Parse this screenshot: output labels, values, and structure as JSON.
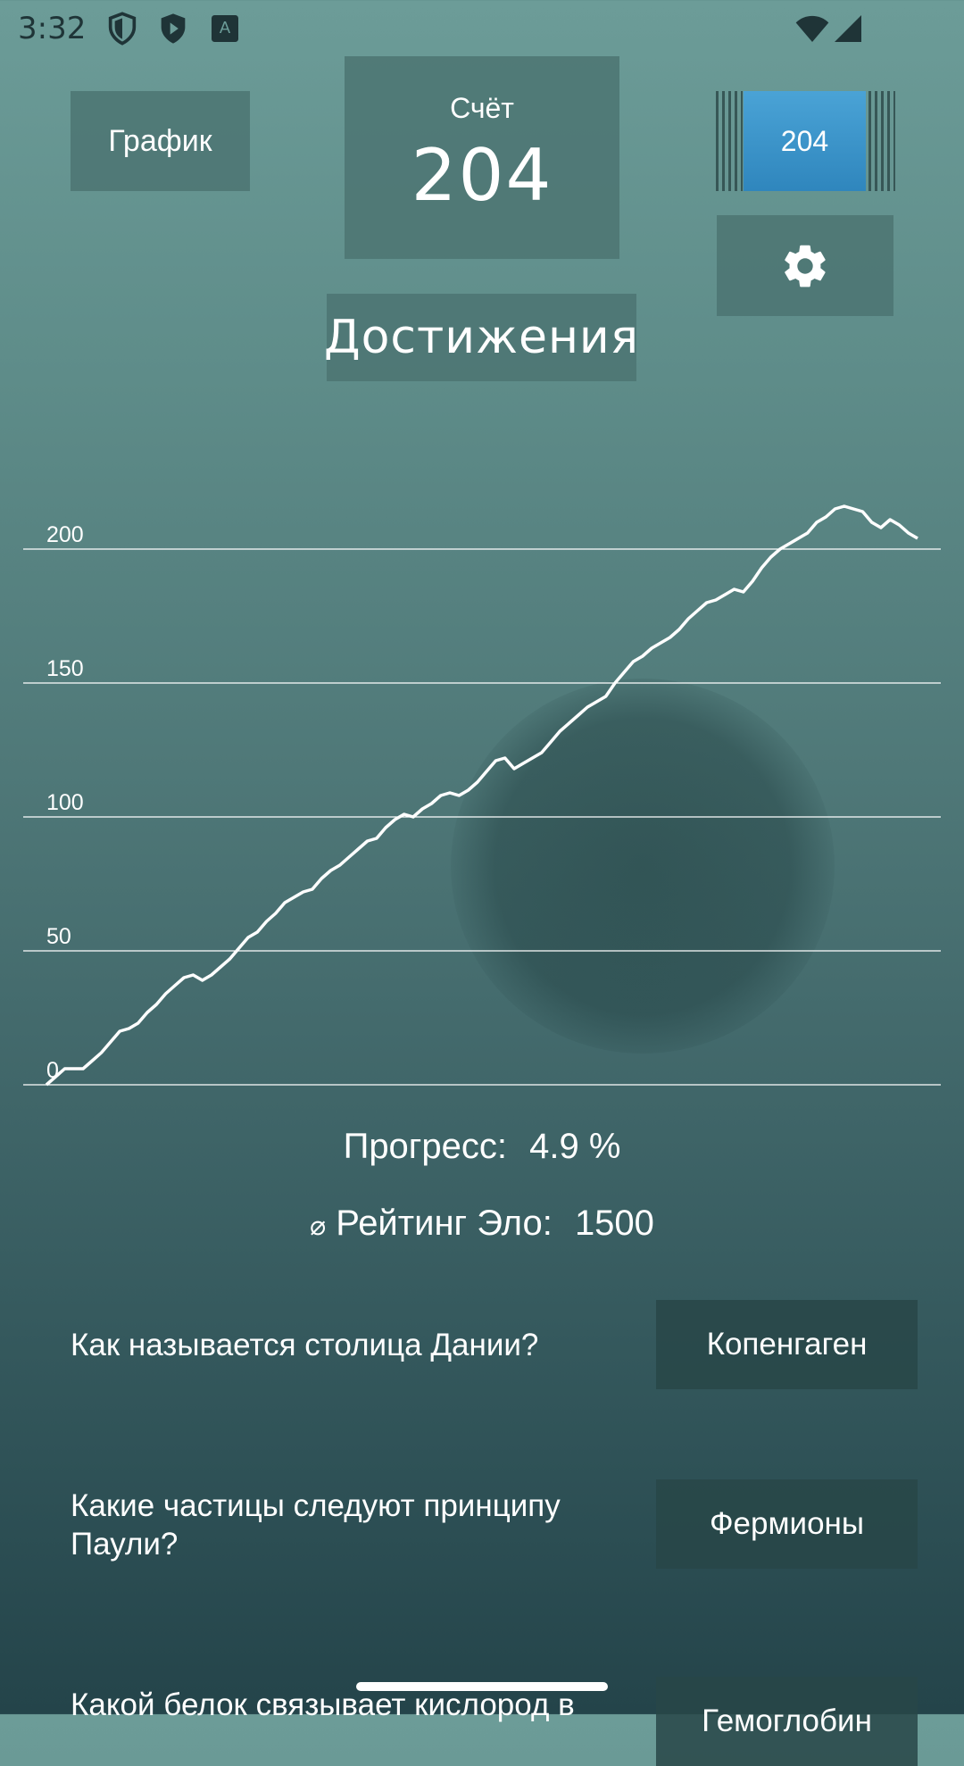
{
  "status_bar": {
    "time": "3:32",
    "icons": [
      "shield-icon",
      "play-shield-icon",
      "keyboard-a-icon",
      "wifi-icon",
      "cell-signal-icon"
    ]
  },
  "header": {
    "grafik_label": "График",
    "score_label": "Счёт",
    "score_value": "204",
    "level_value": "204",
    "achievements_label": "Достижения"
  },
  "chart_data": {
    "type": "line",
    "title": "",
    "xlabel": "",
    "ylabel": "",
    "ylim": [
      0,
      200
    ],
    "yticks": [
      "0",
      "50",
      "100",
      "150",
      "200"
    ],
    "grid": true,
    "series": [
      {
        "values": [
          0,
          3,
          6,
          6,
          6,
          9,
          12,
          16,
          20,
          21,
          23,
          27,
          30,
          34,
          37,
          40,
          41,
          39,
          41,
          44,
          47,
          51,
          55,
          57,
          61,
          64,
          68,
          70,
          72,
          73,
          77,
          80,
          82,
          85,
          88,
          91,
          92,
          96,
          99,
          101,
          100,
          103,
          105,
          108,
          109,
          108,
          110,
          113,
          117,
          121,
          122,
          118,
          120,
          122,
          124,
          128,
          132,
          135,
          138,
          141,
          143,
          145,
          150,
          154,
          158,
          160,
          163,
          165,
          167,
          170,
          174,
          177,
          180,
          181,
          183,
          185,
          184,
          188,
          193,
          197,
          200,
          202,
          204,
          206,
          210,
          212,
          215,
          216,
          215,
          214,
          210,
          208,
          211,
          209,
          206,
          204
        ]
      }
    ],
    "colors": {
      "line": "#ffffff",
      "grid": "#ffffff"
    }
  },
  "stats": {
    "progress_label": "Прогресс:",
    "progress_value": "4.9 %",
    "elo_prefix": "⌀",
    "elo_label": "Рейтинг Эло:",
    "elo_value": "1500"
  },
  "qa": [
    {
      "question": "Как называется столица Дании?",
      "answer": "Копенгаген"
    },
    {
      "question": "Какие частицы следуют принципу Паули?",
      "answer": "Фермионы"
    },
    {
      "question": "Какой белок связывает кислород в",
      "answer": "Гемоглобин"
    }
  ],
  "colors": {
    "accent": "#3a94cb",
    "panel": "#4c7472",
    "answer_panel": "#284648"
  }
}
